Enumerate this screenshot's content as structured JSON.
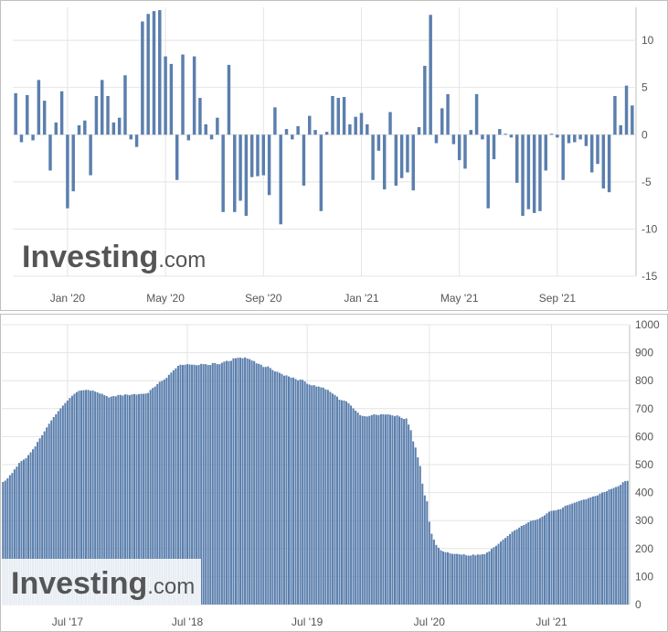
{
  "colors": {
    "bar": "#5b7fad",
    "grid": "#e4e4e4",
    "axis": "#c0c0c0",
    "text": "#555555",
    "watermark": "#555555",
    "watermark_bg": "#ffffff"
  },
  "watermark": {
    "brand": "Investing",
    "suffix": ".com"
  },
  "chart_data": [
    {
      "type": "bar",
      "title": "",
      "xlabel": "",
      "ylabel": "",
      "ylim": [
        -15,
        13.5
      ],
      "grid": true,
      "yticks": [
        -15,
        -10,
        -5,
        0,
        5,
        10
      ],
      "ytick_labels": [
        "-15",
        "-10",
        "-5",
        "0",
        "5",
        "10"
      ],
      "xtick_labels": [
        "Jan '20",
        "May '20",
        "Sep '20",
        "Jan '21",
        "May '21",
        "Sep '21"
      ],
      "xtick_index": [
        9,
        26,
        43,
        60,
        77,
        94
      ],
      "values": [
        4.4,
        -0.8,
        4.2,
        -0.6,
        5.8,
        3.6,
        -3.8,
        1.3,
        4.6,
        -7.8,
        -6.0,
        1.0,
        1.5,
        -4.3,
        4.1,
        5.8,
        4.1,
        1.3,
        1.8,
        6.3,
        -0.5,
        -1.3,
        12.0,
        12.8,
        13.1,
        13.2,
        8.3,
        7.5,
        -4.8,
        8.5,
        -0.6,
        8.3,
        3.9,
        1.1,
        -0.5,
        1.8,
        -8.2,
        7.4,
        -8.2,
        -7.0,
        -8.6,
        -4.5,
        -4.4,
        -4.3,
        -6.4,
        2.9,
        -9.5,
        0.6,
        -0.5,
        0.9,
        -5.4,
        2.0,
        0.5,
        -8.1,
        0.3,
        4.1,
        3.9,
        4.0,
        1.1,
        1.9,
        2.3,
        1.1,
        -4.8,
        -1.7,
        -5.8,
        2.4,
        -5.4,
        -4.6,
        -4.0,
        -5.9,
        0.8,
        7.3,
        12.7,
        -0.9,
        2.8,
        4.3,
        -1.0,
        -2.7,
        -3.6,
        0.5,
        4.3,
        -0.5,
        -7.8,
        -2.6,
        0.6,
        0.1,
        -0.3,
        -5.1,
        -8.6,
        -7.9,
        -8.3,
        -8.1,
        -3.8,
        0.1,
        -0.3,
        -4.8,
        -0.9,
        -0.8,
        -0.5,
        -1.2,
        -4.0,
        -3.1,
        -5.7,
        -6.1,
        4.1,
        1.0,
        5.2,
        3.1
      ]
    },
    {
      "type": "bar",
      "title": "",
      "xlabel": "",
      "ylabel": "",
      "ylim": [
        0,
        1000
      ],
      "grid": true,
      "yticks": [
        0,
        100,
        200,
        300,
        400,
        500,
        600,
        700,
        800,
        900,
        1000
      ],
      "ytick_labels": [
        "0",
        "100",
        "200",
        "300",
        "400",
        "500",
        "600",
        "700",
        "800",
        "900",
        "1000"
      ],
      "xtick_labels": [
        "Jul '17",
        "Jul '18",
        "Jul '19",
        "Jul '20",
        "Jul '21"
      ],
      "xtick_index": [
        28,
        80,
        132,
        185,
        238
      ],
      "values": [
        438,
        443,
        451,
        462,
        470,
        483,
        493,
        506,
        513,
        518,
        523,
        534,
        544,
        555,
        565,
        581,
        594,
        605,
        619,
        633,
        646,
        658,
        670,
        680,
        691,
        701,
        711,
        720,
        729,
        738,
        746,
        753,
        759,
        764,
        765,
        766,
        767,
        767,
        764,
        765,
        761,
        758,
        754,
        753,
        748,
        745,
        740,
        743,
        745,
        744,
        749,
        749,
        747,
        751,
        750,
        748,
        751,
        752,
        750,
        752,
        753,
        753,
        754,
        756,
        767,
        774,
        779,
        788,
        796,
        799,
        804,
        810,
        821,
        829,
        837,
        844,
        853,
        857,
        856,
        857,
        859,
        858,
        857,
        857,
        855,
        856,
        860,
        859,
        859,
        856,
        856,
        863,
        863,
        859,
        859,
        864,
        868,
        871,
        870,
        871,
        880,
        880,
        882,
        882,
        880,
        883,
        879,
        877,
        872,
        870,
        862,
        860,
        857,
        849,
        849,
        851,
        845,
        838,
        833,
        832,
        828,
        824,
        818,
        819,
        815,
        811,
        811,
        806,
        801,
        804,
        803,
        797,
        789,
        786,
        783,
        784,
        779,
        779,
        776,
        775,
        769,
        767,
        760,
        754,
        749,
        743,
        732,
        730,
        729,
        726,
        719,
        711,
        701,
        693,
        686,
        677,
        674,
        673,
        672,
        674,
        677,
        680,
        678,
        677,
        680,
        680,
        679,
        680,
        678,
        676,
        673,
        676,
        672,
        667,
        663,
        665,
        643,
        623,
        583,
        561,
        526,
        495,
        432,
        390,
        369,
        296,
        253,
        232,
        213,
        203,
        194,
        190,
        187,
        187,
        183,
        181,
        181,
        181,
        180,
        178,
        180,
        176,
        175,
        175,
        179,
        176,
        179,
        178,
        180,
        180,
        186,
        190,
        199,
        205,
        210,
        217,
        225,
        232,
        238,
        245,
        252,
        260,
        265,
        269,
        275,
        281,
        284,
        289,
        294,
        299,
        301,
        302,
        305,
        309,
        314,
        319,
        326,
        332,
        335,
        336,
        337,
        340,
        341,
        347,
        353,
        355,
        358,
        361,
        364,
        367,
        370,
        373,
        375,
        376,
        380,
        383,
        386,
        388,
        390,
        396,
        400,
        402,
        405,
        411,
        413,
        417,
        420,
        423,
        428,
        437,
        441,
        442
      ]
    }
  ]
}
